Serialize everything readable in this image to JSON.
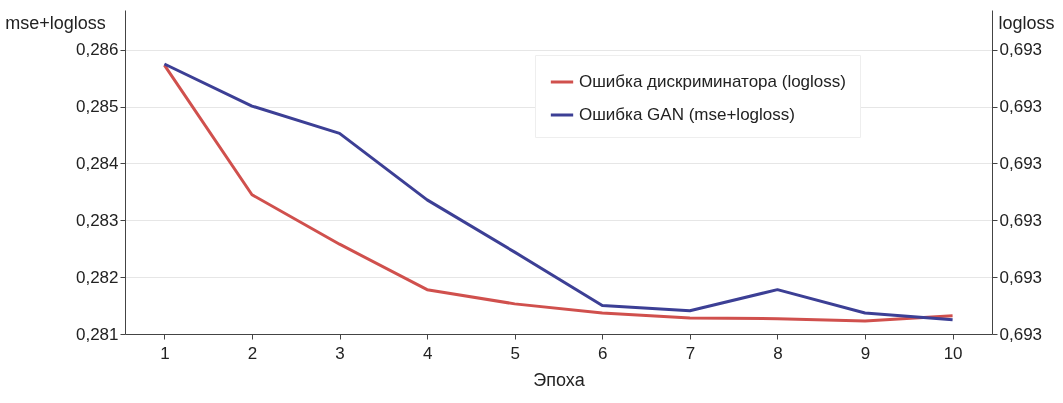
{
  "chart_data": {
    "type": "line",
    "xlabel": "Эпоха",
    "ylabel": "mse+logloss",
    "y2label": "logloss",
    "categories": [
      "1",
      "2",
      "3",
      "4",
      "5",
      "6",
      "7",
      "8",
      "9",
      "10"
    ],
    "series": [
      {
        "name": "Ошибка дискриминатора (logloss)",
        "color": "#d0504d",
        "axis": "y2",
        "values": [
          0.693473,
          0.693245,
          0.693158,
          0.693078,
          0.693053,
          0.693037,
          0.693028,
          0.693027,
          0.693023,
          0.693032
        ]
      },
      {
        "name": "Ошибка GAN (mse+logloss)",
        "color": "#3c3f95",
        "values": [
          0.28575,
          0.28501,
          0.28453,
          0.28336,
          0.28244,
          0.2815,
          0.28141,
          0.28178,
          0.28137,
          0.28125
        ]
      }
    ],
    "ylim": [
      0.281,
      0.2867
    ],
    "yticks": [
      {
        "value": 0.281,
        "label": "0,281"
      },
      {
        "value": 0.282,
        "label": "0,282"
      },
      {
        "value": 0.283,
        "label": "0,283"
      },
      {
        "value": 0.284,
        "label": "0,284"
      },
      {
        "value": 0.285,
        "label": "0,285"
      },
      {
        "value": 0.286,
        "label": "0,286"
      }
    ],
    "y2lim": [
      0.693,
      0.69357
    ],
    "y2ticks": [
      {
        "value": 0.693,
        "label": "0,693"
      },
      {
        "value": 0.6931,
        "label": "0,693"
      },
      {
        "value": 0.6932,
        "label": "0,693"
      },
      {
        "value": 0.6933,
        "label": "0,693"
      },
      {
        "value": 0.6934,
        "label": "0,693"
      },
      {
        "value": 0.6935,
        "label": "0,693"
      }
    ],
    "grid": "y",
    "legend": "top right",
    "marker": "none",
    "line_style": "solid"
  }
}
